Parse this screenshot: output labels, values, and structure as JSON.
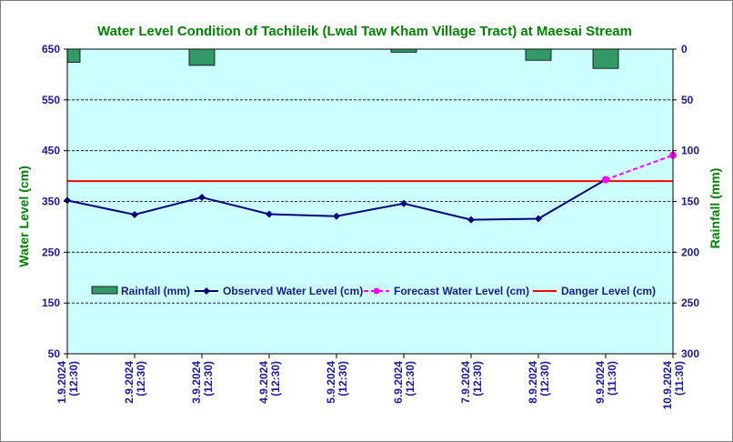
{
  "chart_data": {
    "type": "bar+line",
    "title": "Water Level Condition of Tachileik (Lwal Taw Kham Village Tract) at Maesai Stream",
    "ylabel_left": "Water Level (cm)",
    "ylabel_right": "Rainfall (mm)",
    "ylim_left": [
      50,
      650
    ],
    "yticks_left": [
      650,
      550,
      450,
      350,
      250,
      150,
      50
    ],
    "ylim_right": [
      0,
      300
    ],
    "right_axis_inverted": true,
    "yticks_right": [
      0,
      50,
      100,
      150,
      200,
      250,
      300
    ],
    "grid": true,
    "legend_placement": "bottom-center",
    "categories": [
      [
        "1.9.2024",
        "(12:30)"
      ],
      [
        "2.9.2024",
        "(12:30)"
      ],
      [
        "3.9.2024",
        "(12:30)"
      ],
      [
        "4.9.2024",
        "(12:30)"
      ],
      [
        "5.9.2024",
        "(12:30)"
      ],
      [
        "6.9.2024",
        "(12:30)"
      ],
      [
        "7.9.2024",
        "(12:30)"
      ],
      [
        "8.9.2024",
        "(12:30)"
      ],
      [
        "9.9.2024",
        "(11:30)"
      ],
      [
        "10.9.2024",
        "(11:30)"
      ]
    ],
    "series": [
      {
        "name": "Rainfall (mm)",
        "kind": "bar",
        "axis": "right",
        "color": "#339966",
        "values": [
          13,
          0,
          16,
          0,
          0,
          3,
          0,
          11,
          19,
          0
        ]
      },
      {
        "name": "Observed Water Level (cm)",
        "kind": "line",
        "axis": "left",
        "color": "#000080",
        "values": [
          352,
          324,
          358,
          325,
          321,
          346,
          314,
          316,
          393,
          null
        ]
      },
      {
        "name": "Forecast Water Level (cm)",
        "kind": "dashed-line",
        "axis": "left",
        "color": "#ff00ff",
        "points": [
          [
            8,
            393
          ],
          [
            9,
            441
          ]
        ]
      },
      {
        "name": "Danger Level (cm)",
        "kind": "hline",
        "axis": "left",
        "color": "#ff0000",
        "value": 390
      }
    ],
    "colors": {
      "plot_background": "#ccffff",
      "title": "#008000",
      "axis_label": "#008000",
      "tick_label": "#1a1a8c"
    }
  }
}
